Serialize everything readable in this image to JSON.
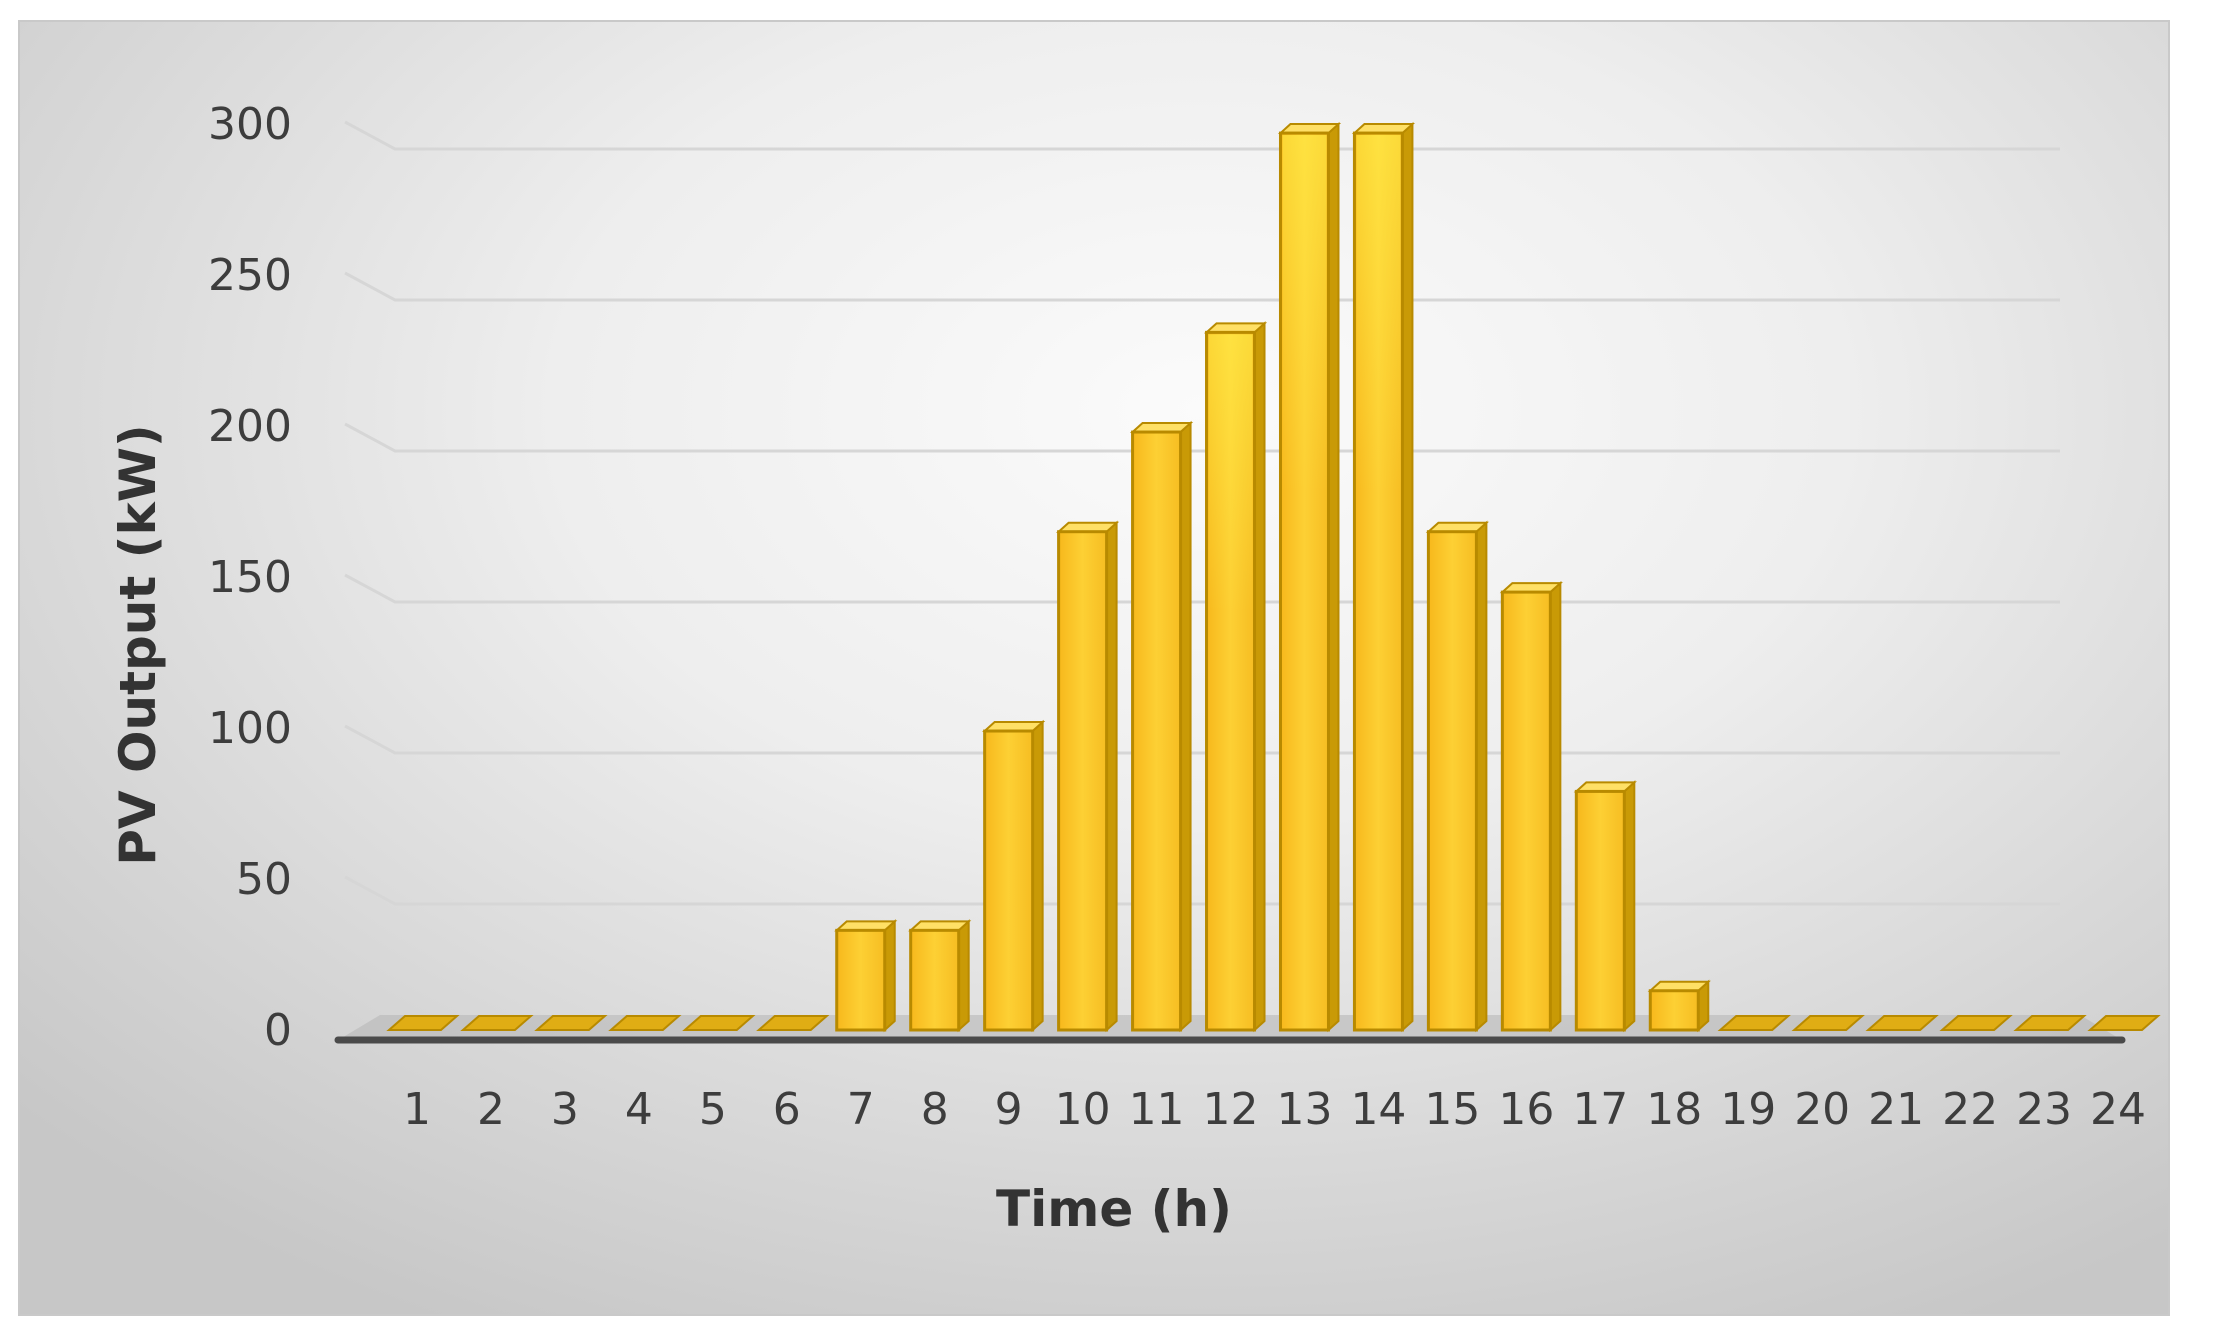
{
  "chart_data": {
    "type": "bar",
    "title": "",
    "xlabel": "Time (h)",
    "ylabel": "PV Output (kW)",
    "categories": [
      "1",
      "2",
      "3",
      "4",
      "5",
      "6",
      "7",
      "8",
      "9",
      "10",
      "11",
      "12",
      "13",
      "14",
      "15",
      "16",
      "17",
      "18",
      "19",
      "20",
      "21",
      "22",
      "23",
      "24"
    ],
    "values": [
      0,
      0,
      0,
      0,
      0,
      0,
      33,
      33,
      99,
      165,
      198,
      231,
      297,
      297,
      165,
      145,
      79,
      13,
      0,
      0,
      0,
      0,
      0,
      0
    ],
    "ylim": [
      0,
      300
    ],
    "yticks": [
      0,
      50,
      100,
      150,
      200,
      250,
      300
    ],
    "grid": true,
    "legend": "none",
    "style": "3d-column",
    "colors": {
      "bar_front": "#fcc629",
      "bar_top": "#ffe066",
      "bar_side": "#c99a06",
      "bar_edge": "#b88a00",
      "gridline": "#d6d6d6",
      "floor": "#b5b5b5"
    }
  }
}
